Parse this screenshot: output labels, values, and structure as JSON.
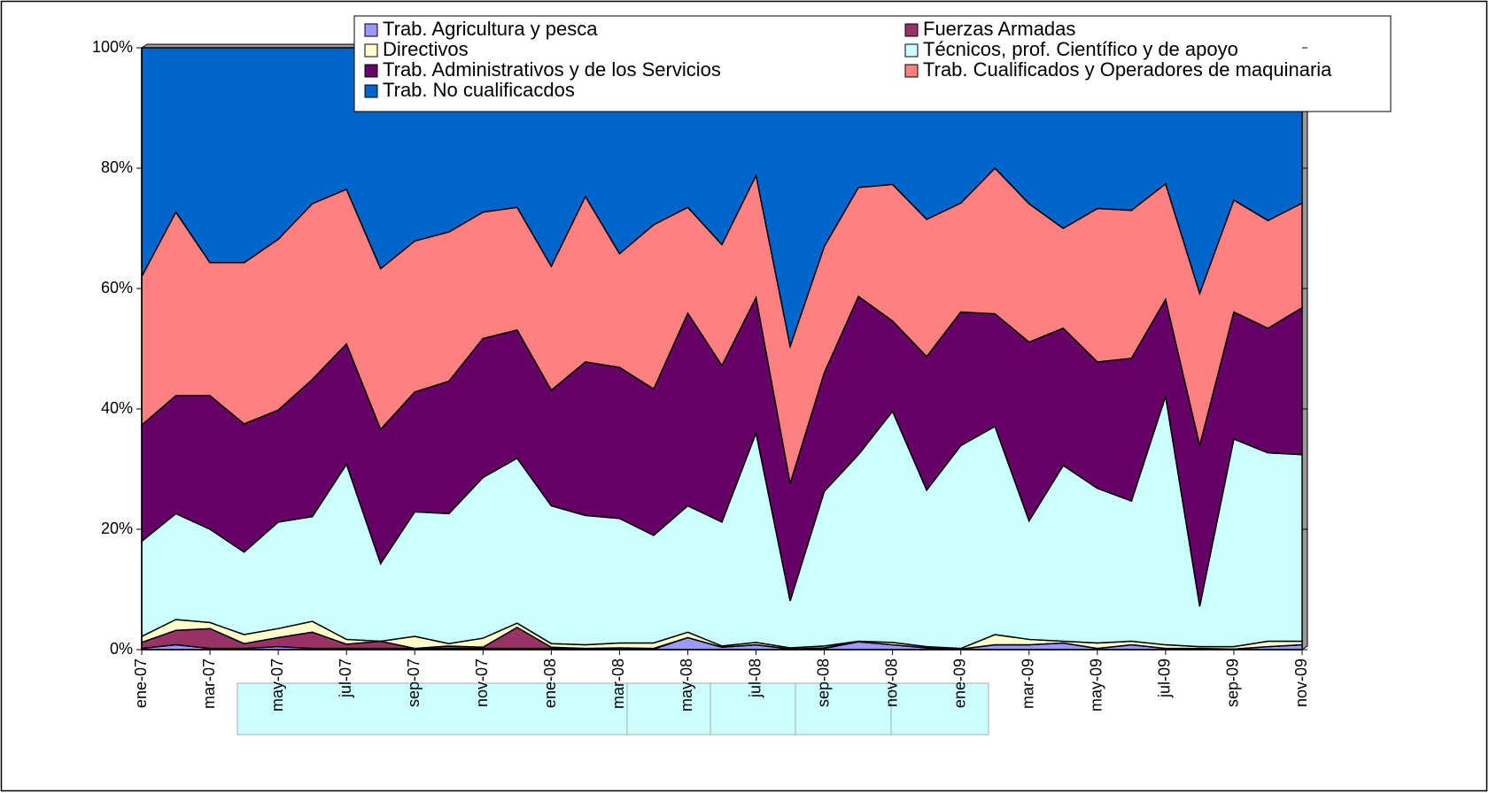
{
  "chart_data": {
    "type": "stacked_area",
    "categories": [
      "ene-07",
      null,
      "mar-07",
      null,
      "may-07",
      null,
      "jul-07",
      null,
      "sep-07",
      null,
      "nov-07",
      null,
      "ene-08",
      null,
      "mar-08",
      null,
      "may-08",
      null,
      "jul-08",
      null,
      "sep-08",
      null,
      "nov-08",
      null,
      "ene-09",
      null,
      "mar-09",
      null,
      "may-09",
      null,
      "jul-09",
      null,
      "sep-09",
      null,
      "nov-09"
    ],
    "series": [
      {
        "name": "Trab. Agricultura y pesca",
        "color": "#9999ff",
        "values": [
          0.2,
          0.8,
          0.2,
          0.2,
          0.5,
          0.2,
          0.2,
          0.2,
          0.2,
          0.2,
          0.2,
          0.2,
          0.2,
          0.1,
          0.2,
          0.1,
          2.0,
          0.4,
          0.8,
          0.1,
          0.2,
          1.3,
          0.8,
          0.3,
          0.1,
          0.8,
          0.8,
          1.1,
          0.2,
          0.8,
          0.2,
          0.2,
          0.1,
          0.5,
          0.8
        ]
      },
      {
        "name": "Fuerzas Armadas",
        "color": "#993366",
        "values": [
          1.0,
          2.4,
          3.3,
          0.8,
          1.5,
          2.7,
          0.7,
          1.2,
          0,
          0.4,
          0.2,
          3.5,
          0.2,
          0.1,
          0.1,
          0.1,
          0,
          0,
          0,
          0,
          0.1,
          0,
          0,
          0,
          0,
          0,
          0,
          0,
          0,
          0,
          0,
          0,
          0,
          0,
          0
        ]
      },
      {
        "name": "Directivos",
        "color": "#ffffcc",
        "values": [
          1.0,
          1.8,
          1.0,
          1.5,
          1.5,
          1.8,
          0.8,
          0,
          2.0,
          0.4,
          1.5,
          0.7,
          0.6,
          0.6,
          0.8,
          0.9,
          0.9,
          0.2,
          0.4,
          0.2,
          0.3,
          0.1,
          0.4,
          0.2,
          0.1,
          1.7,
          0.9,
          0.3,
          0.9,
          0.6,
          0.6,
          0.3,
          0.4,
          0.9,
          0.6
        ]
      },
      {
        "name": "Técnicos, prof. Científico y de apoyo",
        "color": "#ccffff",
        "values": [
          15.8,
          17.6,
          15.5,
          13.7,
          17.7,
          17.4,
          29.1,
          12.9,
          20.7,
          21.6,
          26.7,
          27.4,
          22.9,
          21.5,
          20.7,
          17.9,
          21.0,
          20.6,
          34.8,
          7.8,
          25.7,
          31.0,
          38.4,
          26.0,
          33.7,
          34.6,
          19.7,
          29.2,
          25.7,
          23.3,
          41.3,
          6.7,
          34.5,
          31.3,
          31.0
        ]
      },
      {
        "name": "Trab. Administrativos y de los Servicios",
        "color": "#660066",
        "values": [
          19.3,
          19.6,
          22.2,
          21.3,
          18.6,
          22.8,
          20.0,
          22.3,
          19.9,
          22.0,
          23.1,
          21.3,
          19.2,
          25.5,
          25.1,
          24.3,
          32.0,
          26.0,
          22.5,
          19.5,
          19.7,
          26.3,
          15.0,
          22.2,
          22.2,
          18.7,
          29.7,
          22.8,
          21.0,
          23.7,
          16.1,
          26.7,
          21.1,
          20.7,
          24.4
        ]
      },
      {
        "name": "Trab. Cualificados y Operadores de maquinaria",
        "color": "#ff8080",
        "values": [
          24.7,
          30.5,
          22.1,
          26.8,
          28.4,
          29.2,
          25.7,
          26.7,
          25.1,
          24.8,
          21.0,
          20.4,
          20.6,
          27.5,
          18.9,
          27.3,
          17.6,
          20.1,
          20.3,
          22.8,
          21.0,
          18.1,
          22.7,
          22.8,
          18.1,
          24.2,
          23.0,
          16.6,
          25.5,
          24.6,
          19.2,
          25.3,
          18.6,
          17.9,
          17.4
        ]
      },
      {
        "name": "Trab. No cualificacdos",
        "color": "#0066cc",
        "values": [
          38.0,
          27.3,
          35.7,
          35.7,
          31.8,
          25.9,
          23.5,
          36.7,
          32.1,
          30.6,
          27.3,
          26.5,
          36.3,
          24.7,
          34.2,
          29.4,
          26.5,
          32.7,
          21.2,
          49.6,
          33.0,
          23.2,
          22.7,
          28.5,
          25.8,
          20.0,
          25.9,
          30.0,
          26.7,
          27.0,
          22.6,
          40.8,
          25.3,
          28.7,
          25.8
        ]
      }
    ],
    "ylim": [
      0,
      100
    ],
    "yticks": [
      {
        "value": 0,
        "label": "0%"
      },
      {
        "value": 20,
        "label": "20%"
      },
      {
        "value": 40,
        "label": "40%"
      },
      {
        "value": 60,
        "label": "60%"
      },
      {
        "value": 80,
        "label": "80%"
      },
      {
        "value": 100,
        "label": "100%"
      }
    ],
    "legend": "top"
  }
}
